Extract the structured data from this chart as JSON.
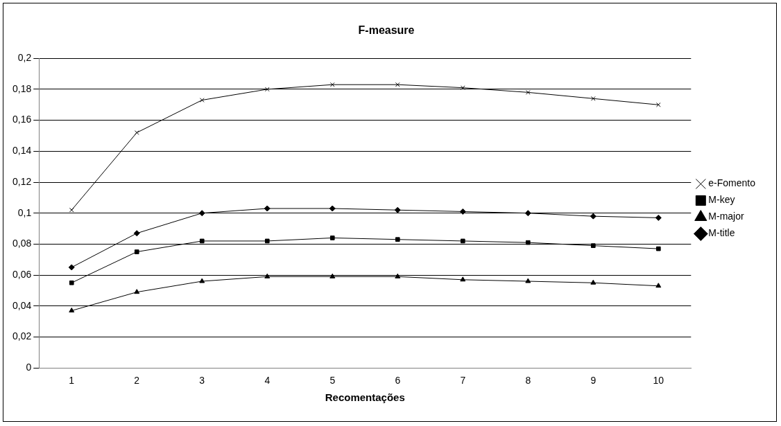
{
  "chart_data": {
    "type": "line",
    "title": "F-measure",
    "xlabel": "Recomentações",
    "categories": [
      "1",
      "2",
      "3",
      "4",
      "5",
      "6",
      "7",
      "8",
      "9",
      "10"
    ],
    "series": [
      {
        "name": "e-Fomento",
        "color": "#000000",
        "marker": "cross",
        "values": [
          0.102,
          0.152,
          0.173,
          0.18,
          0.183,
          0.183,
          0.181,
          0.178,
          0.174,
          0.17
        ]
      },
      {
        "name": "M-key",
        "color": "#000000",
        "marker": "square",
        "values": [
          0.055,
          0.075,
          0.082,
          0.082,
          0.084,
          0.083,
          0.082,
          0.081,
          0.079,
          0.077
        ]
      },
      {
        "name": "M-major",
        "color": "#000000",
        "marker": "triangle",
        "values": [
          0.037,
          0.049,
          0.056,
          0.059,
          0.059,
          0.059,
          0.057,
          0.056,
          0.055,
          0.053
        ]
      },
      {
        "name": "M-title",
        "color": "#000000",
        "marker": "diamond",
        "values": [
          0.065,
          0.087,
          0.1,
          0.103,
          0.103,
          0.102,
          0.101,
          0.1,
          0.098,
          0.097
        ]
      }
    ],
    "ylim": [
      0,
      0.2
    ],
    "yticks": [
      {
        "value": 0,
        "label": "0"
      },
      {
        "value": 0.02,
        "label": "0,02"
      },
      {
        "value": 0.04,
        "label": "0,04"
      },
      {
        "value": 0.06,
        "label": "0,06"
      },
      {
        "value": 0.08,
        "label": "0,08"
      },
      {
        "value": 0.1,
        "label": "0,1"
      },
      {
        "value": 0.12,
        "label": "0,12"
      },
      {
        "value": 0.14,
        "label": "0,14"
      },
      {
        "value": 0.16,
        "label": "0,16"
      },
      {
        "value": 0.18,
        "label": "0,18"
      },
      {
        "value": 0.2,
        "label": "0,2"
      }
    ],
    "grid": "y",
    "legend": "right",
    "line_style": "solid"
  }
}
